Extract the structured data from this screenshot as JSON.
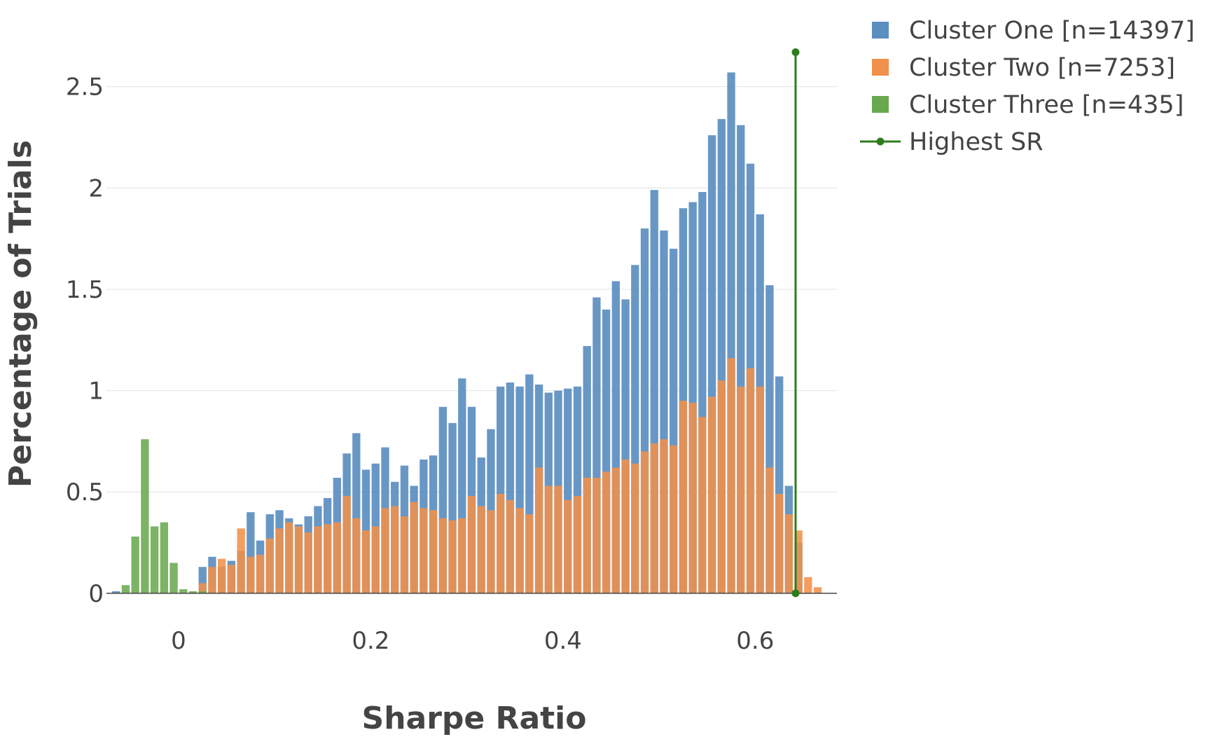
{
  "chart_data": {
    "type": "bar",
    "title": "",
    "xlabel": "Sharpe Ratio",
    "ylabel": "Percentage of Trials",
    "xlim": [
      -0.075,
      0.685
    ],
    "ylim": [
      -0.08,
      2.72
    ],
    "xticks": [
      0,
      0.2,
      0.4,
      0.6
    ],
    "xtick_labels": [
      "0",
      "0.2",
      "0.4",
      "0.6"
    ],
    "yticks": [
      0,
      0.5,
      1,
      1.5,
      2,
      2.5
    ],
    "ytick_labels": [
      "0",
      "0.5",
      "1",
      "1.5",
      "2",
      "2.5"
    ],
    "grid": true,
    "legend_position": "top-right",
    "barmode": "overlay",
    "bin_start": -0.07,
    "bin_width": 0.01,
    "series": [
      {
        "name": "Cluster One [n=14397]",
        "color": "#5b8ec0",
        "values": [
          0.01,
          0.0,
          0.0,
          0.0,
          0.0,
          0.0,
          0.0,
          0.0,
          0.0,
          0.13,
          0.18,
          0.13,
          0.16,
          0.21,
          0.4,
          0.26,
          0.39,
          0.41,
          0.37,
          0.34,
          0.38,
          0.43,
          0.47,
          0.57,
          0.69,
          0.79,
          0.61,
          0.64,
          0.72,
          0.55,
          0.63,
          0.53,
          0.66,
          0.68,
          0.92,
          0.84,
          1.06,
          0.92,
          0.67,
          0.81,
          1.02,
          1.04,
          1.02,
          1.08,
          1.03,
          0.99,
          1.0,
          1.01,
          1.02,
          1.22,
          1.46,
          1.4,
          1.54,
          1.45,
          1.62,
          1.8,
          1.99,
          1.79,
          1.7,
          1.9,
          1.93,
          1.98,
          2.26,
          2.34,
          2.57,
          2.31,
          2.12,
          1.87,
          1.52,
          1.07,
          0.53,
          0.25,
          0.0,
          0.0
        ]
      },
      {
        "name": "Cluster Two [n=7253]",
        "color": "#f0914b",
        "values": [
          0.0,
          0.0,
          0.0,
          0.0,
          0.0,
          0.0,
          0.0,
          0.0,
          0.0,
          0.05,
          0.13,
          0.17,
          0.14,
          0.32,
          0.18,
          0.19,
          0.27,
          0.32,
          0.35,
          0.33,
          0.3,
          0.33,
          0.34,
          0.35,
          0.48,
          0.37,
          0.31,
          0.33,
          0.42,
          0.43,
          0.38,
          0.45,
          0.42,
          0.41,
          0.37,
          0.36,
          0.37,
          0.48,
          0.43,
          0.41,
          0.49,
          0.46,
          0.42,
          0.39,
          0.62,
          0.53,
          0.53,
          0.46,
          0.48,
          0.57,
          0.57,
          0.6,
          0.62,
          0.66,
          0.64,
          0.7,
          0.74,
          0.76,
          0.73,
          0.95,
          0.94,
          0.87,
          0.97,
          1.05,
          1.16,
          1.02,
          1.11,
          1.02,
          0.62,
          0.49,
          0.39,
          0.31,
          0.08,
          0.03
        ]
      },
      {
        "name": "Cluster Three [n=435]",
        "color": "#6aa84f",
        "values": [
          0.0,
          0.04,
          0.28,
          0.76,
          0.33,
          0.35,
          0.15,
          0.02,
          0.01,
          0.01,
          0.0,
          0.0,
          0.0,
          0.0,
          0.0,
          0.0,
          0.0,
          0.0,
          0.0,
          0.0,
          0.0,
          0.0,
          0.0,
          0.0,
          0.0,
          0.0,
          0.0,
          0.0,
          0.0,
          0.0,
          0.0,
          0.0,
          0.0,
          0.0,
          0.0,
          0.0,
          0.0,
          0.0,
          0.0,
          0.0,
          0.0,
          0.0,
          0.0,
          0.0,
          0.0,
          0.0,
          0.0,
          0.0,
          0.0,
          0.0,
          0.0,
          0.0,
          0.0,
          0.0,
          0.0,
          0.0,
          0.0,
          0.0,
          0.0,
          0.0,
          0.0,
          0.0,
          0.0,
          0.0,
          0.0,
          0.0,
          0.0,
          0.0,
          0.0,
          0.0,
          0.0,
          0.0,
          0.0,
          0.0
        ]
      }
    ],
    "highest_sr": {
      "name": "Highest SR",
      "color": "#2d7d1e",
      "x": 0.642,
      "y": [
        0,
        2.67
      ]
    }
  }
}
